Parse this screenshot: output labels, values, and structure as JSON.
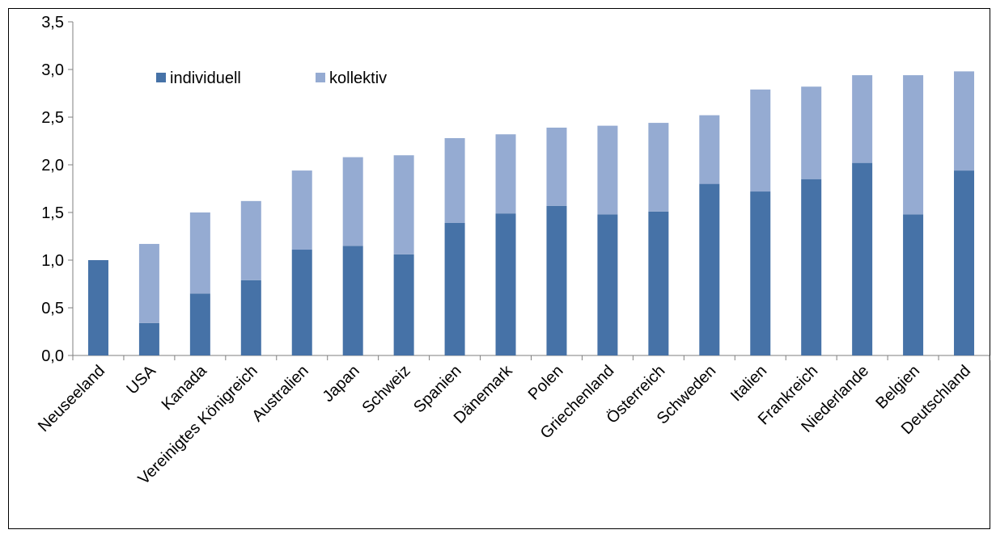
{
  "chart_data": {
    "type": "bar",
    "stacked": true,
    "categories": [
      "Neuseeland",
      "USA",
      "Kanada",
      "Vereinigtes Königreich",
      "Australien",
      "Japan",
      "Schweiz",
      "Spanien",
      "Dänemark",
      "Polen",
      "Griechenland",
      "Österreich",
      "Schweden",
      "Italien",
      "Frankreich",
      "Niederlande",
      "Belgien",
      "Deutschland"
    ],
    "series": [
      {
        "name": "individuell",
        "color": "#4672a7",
        "values": [
          1.0,
          0.34,
          0.65,
          0.79,
          1.11,
          1.15,
          1.06,
          1.39,
          1.49,
          1.57,
          1.48,
          1.51,
          1.8,
          1.72,
          1.85,
          2.02,
          1.48,
          1.94
        ]
      },
      {
        "name": "kollektiv",
        "color": "#95abd2",
        "values": [
          0.0,
          0.83,
          0.85,
          0.83,
          0.83,
          0.93,
          1.04,
          0.89,
          0.83,
          0.82,
          0.93,
          0.93,
          0.72,
          1.07,
          0.97,
          0.92,
          1.46,
          1.04
        ]
      }
    ],
    "ylim": [
      0,
      3.5
    ],
    "yticks": [
      "0,0",
      "0,5",
      "1,0",
      "1,5",
      "2,0",
      "2,5",
      "3,0",
      "3,5"
    ],
    "grid": false,
    "legend": "top-left"
  }
}
